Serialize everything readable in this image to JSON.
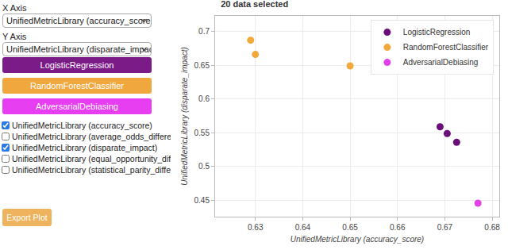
{
  "panel": {
    "x_axis_label": "X Axis",
    "x_axis_value": "UnifiedMetricLibrary (accuracy_score)",
    "y_axis_label": "Y Axis",
    "y_axis_value": "UnifiedMetricLibrary (disparate_impact)",
    "buttons": [
      {
        "label": "LogisticRegression",
        "color": "#7b1b88"
      },
      {
        "label": "RandomForestClassifier",
        "color": "#f0a73e"
      },
      {
        "label": "AdversarialDebiasing",
        "color": "#e63ef0"
      }
    ],
    "checkboxes": [
      {
        "label": "UnifiedMetricLibrary (accuracy_score)",
        "checked": true
      },
      {
        "label": "UnifiedMetricLibrary (average_odds_difference)",
        "checked": false
      },
      {
        "label": "UnifiedMetricLibrary (disparate_impact)",
        "checked": true
      },
      {
        "label": "UnifiedMetricLibrary (equal_opportunity_difference)",
        "checked": false
      },
      {
        "label": "UnifiedMetricLibrary (statistical_parity_difference)",
        "checked": false
      }
    ],
    "export_button": {
      "label": "Export Plot",
      "color": "#eeb35c"
    }
  },
  "chart_data": {
    "type": "scatter",
    "title": "20 data selected",
    "x_label": "UnifiedMetricLibrary (accuracy_score)",
    "y_label": "UnifiedMetricLibrary (disparate_impact)",
    "series": [
      {
        "name": "LogisticRegression",
        "color": "#6a0f7a",
        "x": [
          0.669,
          0.6705,
          0.6725
        ],
        "values": [
          0.559,
          0.549,
          0.536
        ]
      },
      {
        "name": "RandomForestClassifier",
        "color": "#f2a93b",
        "x": [
          0.629,
          0.63,
          0.65
        ],
        "values": [
          0.687,
          0.666,
          0.649
        ]
      },
      {
        "name": "AdversarialDebiasing",
        "color": "#e040e8",
        "x": [
          0.677
        ],
        "values": [
          0.446
        ]
      }
    ],
    "marker": "circle",
    "xlim": [
      0.6215,
      0.6815
    ],
    "xticks": [
      0.63,
      0.64,
      0.65,
      0.66,
      0.67,
      0.68
    ],
    "ylim": [
      0.426,
      0.723
    ],
    "yticks": [
      0.45,
      0.5,
      0.55,
      0.6,
      0.65,
      0.7
    ],
    "grid": true,
    "legend": "upper right"
  }
}
